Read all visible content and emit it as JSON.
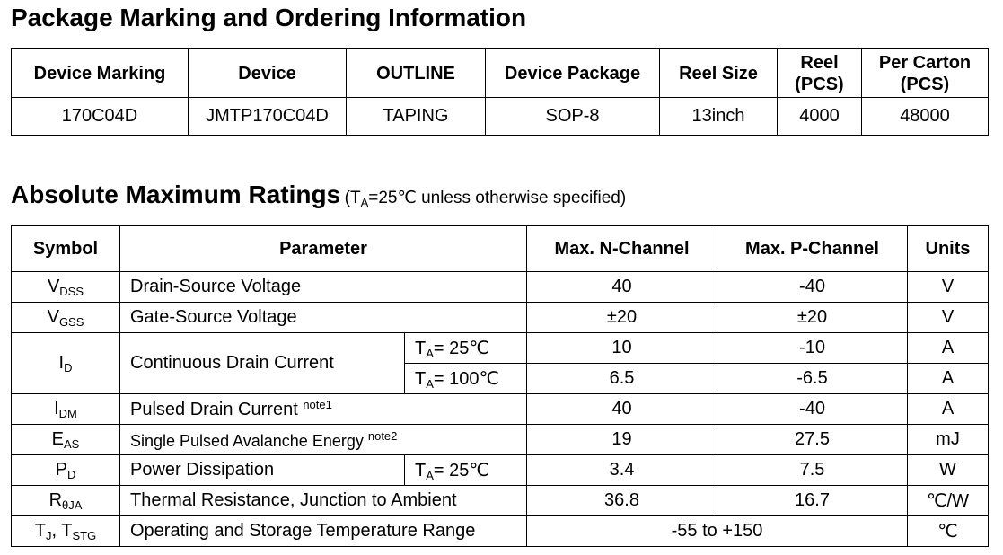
{
  "ordering": {
    "title": "Package Marking and Ordering Information",
    "headers": {
      "marking": "Device Marking",
      "device": "Device",
      "outline": "OUTLINE",
      "package": "Device Package",
      "reel_size": "Reel Size",
      "reel_pcs_a": "Reel",
      "reel_pcs_b": "(PCS)",
      "carton_a": "Per Carton",
      "carton_b": "(PCS)"
    },
    "row": {
      "marking": "170C04D",
      "device": "JMTP170C04D",
      "outline": "TAPING",
      "package": "SOP-8",
      "reel_size": "13inch",
      "reel_pcs": "4000",
      "carton": "48000"
    }
  },
  "ratings": {
    "title": "Absolute Maximum Ratings",
    "subtitle_pre": "(T",
    "subtitle_sub": "A",
    "subtitle_post": "=25℃  unless otherwise specified)",
    "headers": {
      "symbol": "Symbol",
      "parameter": "Parameter",
      "n": "Max. N-Channel",
      "p": "Max. P-Channel",
      "units": "Units"
    },
    "rows": {
      "vdss": {
        "sym": "V",
        "sym_sub": "DSS",
        "param": "Drain-Source Voltage",
        "n": "40",
        "p": "-40",
        "unit": "V"
      },
      "vgss": {
        "sym": "V",
        "sym_sub": "GSS",
        "param": "Gate-Source Voltage",
        "n": "±20",
        "p": "±20",
        "unit": "V"
      },
      "id": {
        "sym": "I",
        "sym_sub": "D",
        "param": "Continuous Drain Current",
        "cond1_pre": "T",
        "cond1_sub": "A",
        "cond1_post": "= 25℃",
        "n1": "10",
        "p1": "-10",
        "unit1": "A",
        "cond2_pre": "T",
        "cond2_sub": "A",
        "cond2_post": "= 100℃",
        "n2": "6.5",
        "p2": "-6.5",
        "unit2": "A"
      },
      "idm": {
        "sym": "I",
        "sym_sub": "DM",
        "param": "Pulsed Drain Current ",
        "note": "note1",
        "n": "40",
        "p": "-40",
        "unit": "A"
      },
      "eas": {
        "sym": "E",
        "sym_sub": "AS",
        "param": "Single Pulsed Avalanche Energy ",
        "note": "note2",
        "n": "19",
        "p": "27.5",
        "unit": "mJ"
      },
      "pd": {
        "sym": "P",
        "sym_sub": "D",
        "param": "Power Dissipation",
        "cond_pre": "T",
        "cond_sub": "A",
        "cond_post": "= 25℃",
        "n": "3.4",
        "p": "7.5",
        "unit": "W"
      },
      "rth": {
        "sym": "R",
        "sym_sub": "θJA",
        "param": "Thermal Resistance, Junction to Ambient",
        "n": "36.8",
        "p": "16.7",
        "unit": "℃/W"
      },
      "tj": {
        "sym1": "T",
        "sym1_sub": "J",
        "sym_sep": ", T",
        "sym2_sub": "STG",
        "param": "Operating and Storage Temperature Range",
        "both": "-55 to +150",
        "unit": "℃"
      }
    }
  }
}
